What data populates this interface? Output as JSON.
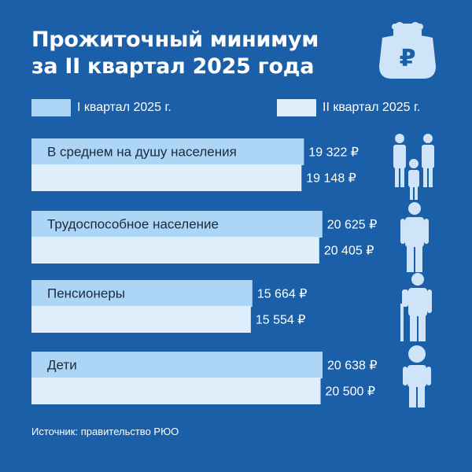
{
  "header": {
    "title_line1": "Прожиточный минимум",
    "title_line2": "за II квартал 2025 года"
  },
  "icons": {
    "wallet": "wallet-ruble-icon",
    "ruble_glyph": "₽"
  },
  "colors": {
    "background": "#1a5fa8",
    "q1": "#add5f5",
    "q2": "#dfeefb",
    "text_on_bar": "#1b2a3d",
    "text": "#ffffff",
    "icon": "#cfe4f8"
  },
  "chart_data": {
    "type": "bar",
    "orientation": "horizontal",
    "categories": [
      "В среднем на душу населения",
      "Трудоспособное население",
      "Пенсионеры",
      "Дети"
    ],
    "series": [
      {
        "name": "I квартал 2025 г.",
        "values": [
          19322,
          20625,
          15664,
          20638
        ],
        "labels": [
          "19 322 ₽",
          "20 625 ₽",
          "15 664 ₽",
          "20 638 ₽"
        ]
      },
      {
        "name": "II квартал 2025 г.",
        "values": [
          19148,
          20405,
          15554,
          20500
        ],
        "labels": [
          "19 148 ₽",
          "20 405 ₽",
          "15 554 ₽",
          "20 500 ₽"
        ]
      }
    ],
    "legend": "top",
    "grid": false
  },
  "footer": {
    "source": "Источник: правительство РЮО"
  }
}
